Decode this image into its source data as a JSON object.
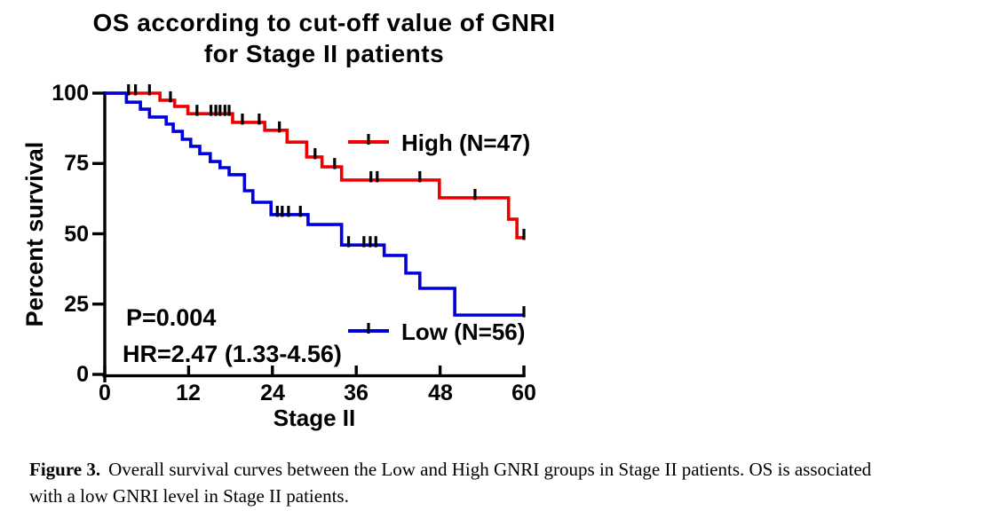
{
  "figure": {
    "title_line1": "OS  according to cut-off value of GNRI",
    "title_line2": "for Stage II patients",
    "p_value": "P=0.004",
    "hazard_ratio": "HR=2.47 (1.33-4.56)",
    "legend": {
      "high_label": "High (N=47)",
      "low_label": "Low (N=56)"
    },
    "colors": {
      "high": "#ee0000",
      "low": "#0000dd",
      "axis": "#000000"
    }
  },
  "caption": {
    "label": "Figure 3.",
    "line1": "Overall survival curves between the Low and High GNRI groups in Stage II patients. OS is associated",
    "line2": "with a low GNRI level in Stage II patients."
  },
  "chart_data": {
    "type": "line",
    "subtype": "kaplan-meier-step",
    "title": "OS according to cut-off value of GNRI for Stage II patients",
    "xlabel": "Stage II",
    "ylabel": "Percent survival",
    "grid": false,
    "legend_position": "inside-right",
    "x_axis": {
      "range": [
        0,
        60
      ],
      "ticks": [
        0,
        12,
        24,
        36,
        48,
        60
      ],
      "tick_labels": [
        "0",
        "12",
        "24",
        "36",
        "48",
        "60"
      ]
    },
    "y_axis": {
      "range": [
        0,
        100
      ],
      "ticks": [
        0,
        25,
        50,
        75,
        100
      ],
      "tick_labels": [
        "0",
        "25",
        "50",
        "75",
        "100"
      ]
    },
    "stats": {
      "p_value": "P=0.004",
      "hazard_ratio": "HR=2.47 (1.33-4.56)"
    },
    "series": [
      {
        "id": "high",
        "name": "High (N=47)",
        "n": 47,
        "color": "#ee0000",
        "points": [
          [
            0,
            100
          ],
          [
            7.9,
            97.5
          ],
          [
            10,
            95.3
          ],
          [
            11.9,
            92.7
          ],
          [
            18.3,
            89.6
          ],
          [
            22.9,
            86.8
          ],
          [
            26.1,
            82.6
          ],
          [
            28.9,
            77.3
          ],
          [
            31.1,
            73.8
          ],
          [
            33.9,
            69.1
          ],
          [
            47.9,
            62.8
          ],
          [
            57.8,
            55.2
          ],
          [
            59,
            48.6
          ],
          [
            60,
            48.6
          ]
        ],
        "censor_marks": [
          [
            3.4,
            100
          ],
          [
            4.4,
            100
          ],
          [
            6.4,
            100
          ],
          [
            9.4,
            97.5
          ],
          [
            13.2,
            92.7
          ],
          [
            15.2,
            92.7
          ],
          [
            15.9,
            92.7
          ],
          [
            16.5,
            92.7
          ],
          [
            17.2,
            92.7
          ],
          [
            17.8,
            92.7
          ],
          [
            19.7,
            89.6
          ],
          [
            22.1,
            89.6
          ],
          [
            25,
            86.8
          ],
          [
            30.1,
            77.3
          ],
          [
            32.9,
            73.8
          ],
          [
            38.1,
            69.1
          ],
          [
            39,
            69.1
          ],
          [
            45.1,
            69.1
          ],
          [
            53,
            62.8
          ],
          [
            60,
            48.6
          ]
        ]
      },
      {
        "id": "low",
        "name": "Low (N=56)",
        "n": 56,
        "color": "#0000dd",
        "points": [
          [
            0,
            100
          ],
          [
            3.1,
            96.8
          ],
          [
            5.1,
            94.3
          ],
          [
            6.4,
            91.5
          ],
          [
            8.8,
            89
          ],
          [
            9.8,
            86.4
          ],
          [
            11.1,
            83.6
          ],
          [
            12.3,
            81.1
          ],
          [
            13.6,
            78.5
          ],
          [
            15.1,
            75.7
          ],
          [
            16.5,
            73.5
          ],
          [
            17.8,
            71
          ],
          [
            20,
            65.3
          ],
          [
            21.2,
            61.2
          ],
          [
            23.8,
            56.8
          ],
          [
            29.1,
            53.3
          ],
          [
            33.9,
            46
          ],
          [
            40,
            42.3
          ],
          [
            43.1,
            36
          ],
          [
            45.1,
            30.6
          ],
          [
            50.1,
            21.1
          ],
          [
            60,
            21.1
          ]
        ],
        "censor_marks": [
          [
            24.7,
            56.8
          ],
          [
            25.4,
            56.8
          ],
          [
            26.3,
            56.8
          ],
          [
            28,
            56.8
          ],
          [
            34.9,
            46
          ],
          [
            37.1,
            46
          ],
          [
            38,
            46
          ],
          [
            38.8,
            46
          ],
          [
            60,
            21.1
          ]
        ]
      }
    ]
  }
}
